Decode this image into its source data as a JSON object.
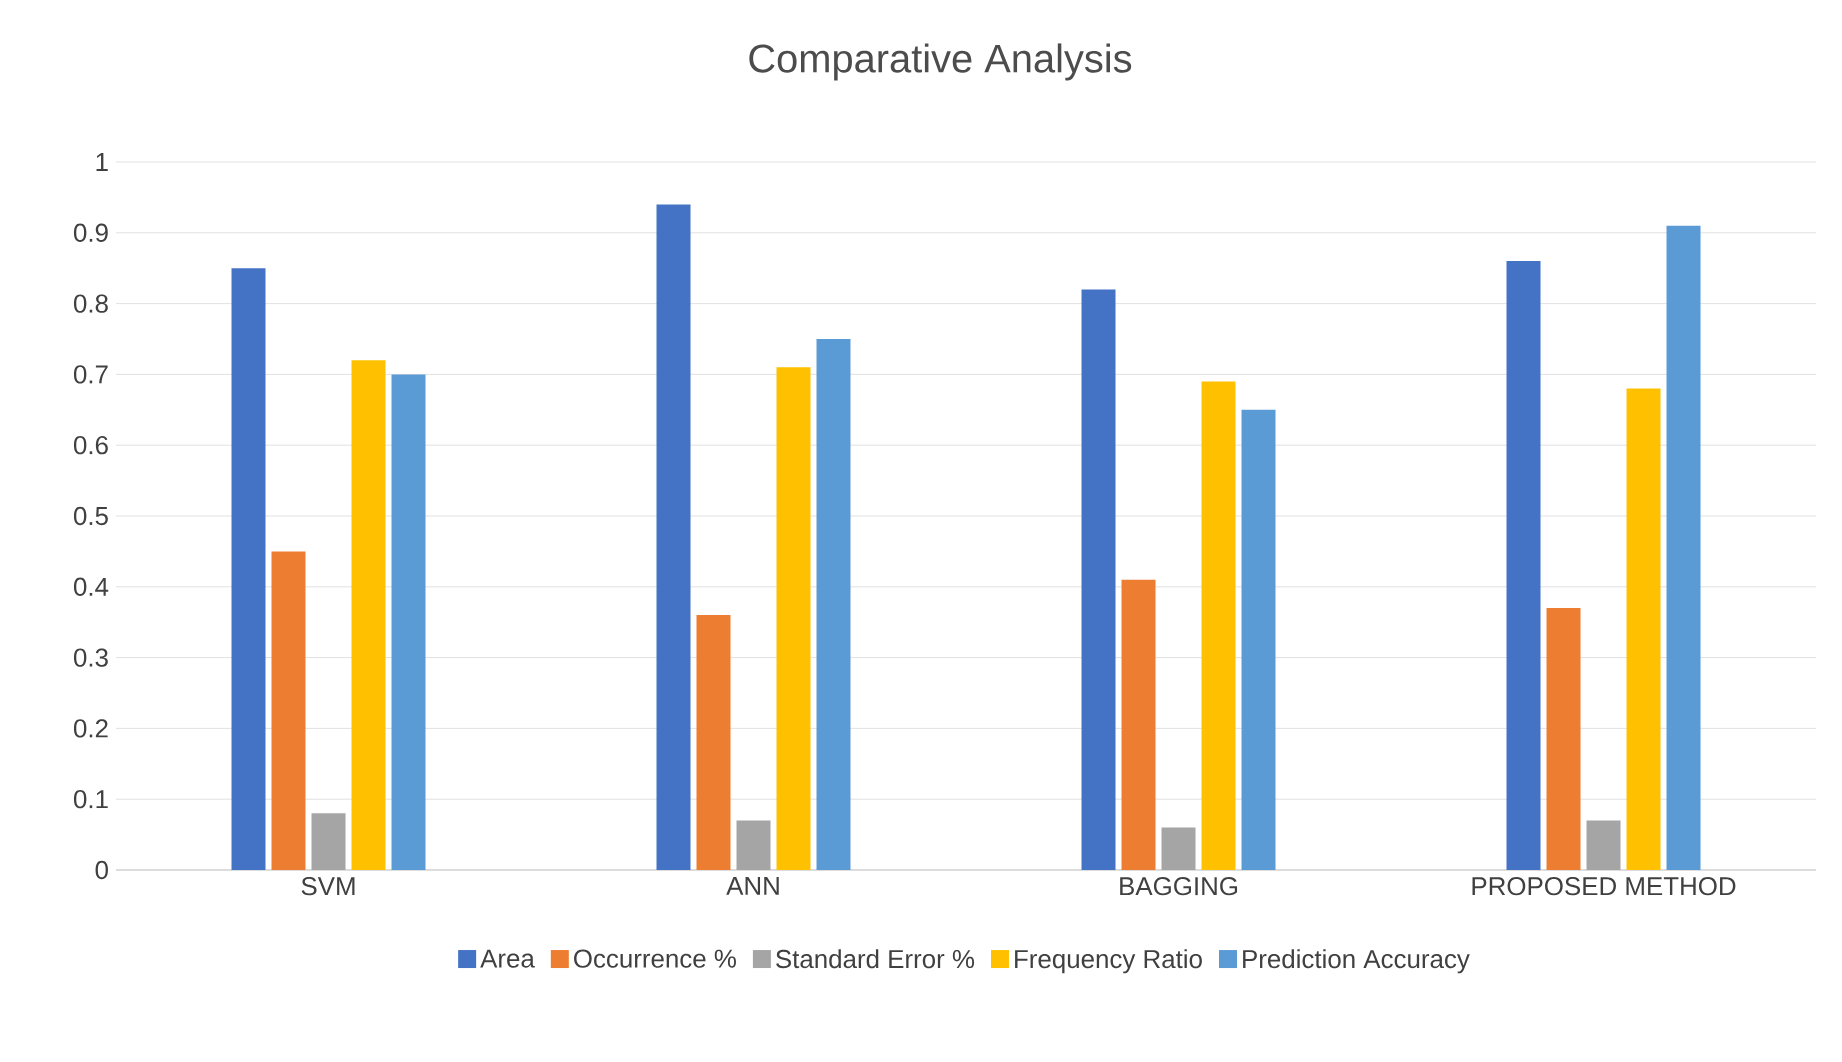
{
  "chart_data": {
    "type": "bar",
    "title": "Comparative Analysis",
    "categories": [
      "SVM",
      "ANN",
      "BAGGING",
      "PROPOSED METHOD"
    ],
    "series": [
      {
        "name": "Area",
        "color": "#4472c4",
        "values": [
          0.85,
          0.94,
          0.82,
          0.86
        ]
      },
      {
        "name": "Occurrence %",
        "color": "#ed7d31",
        "values": [
          0.45,
          0.36,
          0.41,
          0.37
        ]
      },
      {
        "name": "Standard Error %",
        "color": "#a5a5a5",
        "values": [
          0.08,
          0.07,
          0.06,
          0.07
        ]
      },
      {
        "name": "Frequency Ratio",
        "color": "#ffc000",
        "values": [
          0.72,
          0.71,
          0.69,
          0.68
        ]
      },
      {
        "name": "Prediction Accuracy",
        "color": "#5b9bd5",
        "values": [
          0.7,
          0.75,
          0.65,
          0.91
        ]
      }
    ],
    "ylim": [
      0,
      1
    ],
    "yticks": [
      0,
      0.1,
      0.2,
      0.3,
      0.4,
      0.5,
      0.6,
      0.7,
      0.8,
      0.9,
      1
    ],
    "grid": "y",
    "legend": "bottom"
  }
}
